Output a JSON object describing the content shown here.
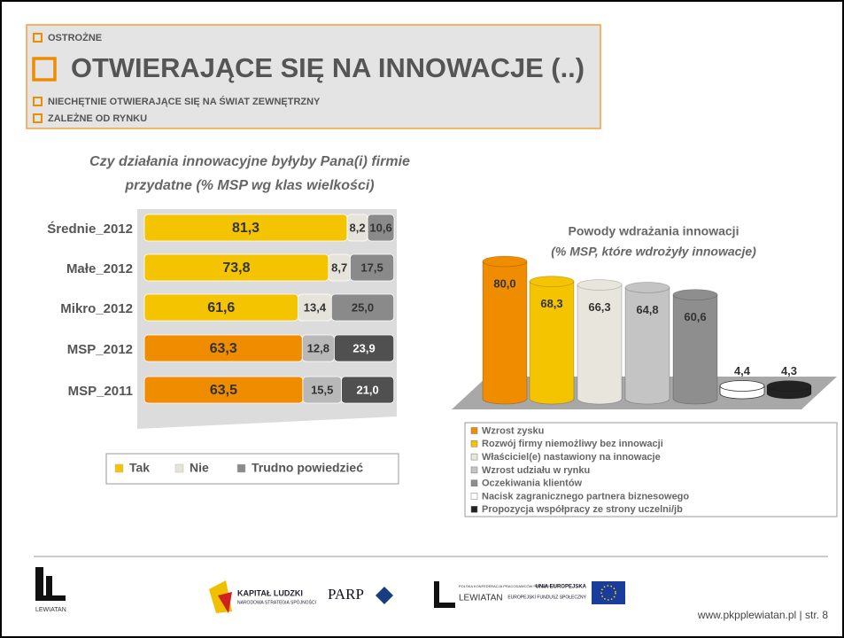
{
  "header": {
    "items": [
      "OSTROŻNE",
      "OTWIERAJĄCE SIĘ NA INNOWACJE (..)",
      "NIECHĘTNIE OTWIERAJĄCE SIĘ NA ŚWIAT ZEWNĘTRZNY",
      "ZALEŻNE OD RYNKU"
    ]
  },
  "chart_data": [
    {
      "type": "stacked_bar_h",
      "title": [
        "Czy działania innowacyjne byłyby Pana(i) firmie",
        "przydatne (% MSP wg klas wielkości)"
      ],
      "categories": [
        "Średnie_2012",
        "Małe_2012",
        "Mikro_2012",
        "MSP_2012",
        "MSP_2011"
      ],
      "series": [
        {
          "name": "Tak",
          "color": "#f5c400",
          "colors": [
            "#f5c400",
            "#f5c400",
            "#f5c400",
            "#f08c00",
            "#f08c00"
          ],
          "values": [
            81.3,
            73.8,
            61.6,
            63.3,
            63.5
          ],
          "value_labels": [
            "81,3",
            "73,8",
            "61,6",
            "63,3",
            "63,5"
          ]
        },
        {
          "name": "Nie",
          "color": "#e6e4da",
          "colors": [
            "#e6e4da",
            "#e6e4da",
            "#e6e4da",
            "#b8b8b8",
            "#b8b8b8"
          ],
          "values": [
            8.2,
            8.7,
            13.4,
            12.8,
            15.5
          ],
          "value_labels": [
            "8,2",
            "8,7",
            "13,4",
            "12,8",
            "15,5"
          ]
        },
        {
          "name": "Trudno powiedzieć",
          "color": "#8a8a8a",
          "colors": [
            "#8a8a8a",
            "#8a8a8a",
            "#8a8a8a",
            "#505050",
            "#505050"
          ],
          "values": [
            10.6,
            17.5,
            25.0,
            23.9,
            21.0
          ],
          "value_labels": [
            "10,6",
            "17,5",
            "25,0",
            "23,9",
            "21,0"
          ]
        }
      ]
    },
    {
      "type": "bar",
      "title": "Powody wdrażania innowacji",
      "subtitle": "(% MSP, które wdrożyły innowacje)",
      "categories": [
        "Wzrost zysku",
        "Rozwój firmy niemożliwy bez innowacji",
        "Właściciel(e) nastawiony na innowacje",
        "Wzrost udziału w rynku",
        "Oczekiwania klientów",
        "Nacisk zagranicznego partnera biznesowego",
        "Propozycja współpracy ze strony uczelni/jb"
      ],
      "values": [
        80.0,
        68.3,
        66.3,
        64.8,
        60.6,
        4.4,
        4.3
      ],
      "value_labels": [
        "80,0",
        "68,3",
        "66,3",
        "64,8",
        "60,6",
        "4,4",
        "4,3"
      ],
      "colors": [
        "#f08c00",
        "#f5c400",
        "#e8e6dc",
        "#c4c4c4",
        "#8e8e8e",
        "#ffffff",
        "#222222"
      ]
    }
  ],
  "footer": {
    "logos": [
      "KAPITAŁ LUDZKI",
      "NARODOWA STRATEGIA SPÓJNOŚCI",
      "PARP",
      "POLSKA KONFEDERACJA PRACODAWCÓW PRYWATNYCH",
      "LEWIATAN",
      "UNIA EUROPEJSKA",
      "EUROPEJSKI FUNDUSZ SPOŁECZNY",
      "LEWIATAN"
    ],
    "url": "www.pkpplewiatan.pl | str. 8"
  }
}
